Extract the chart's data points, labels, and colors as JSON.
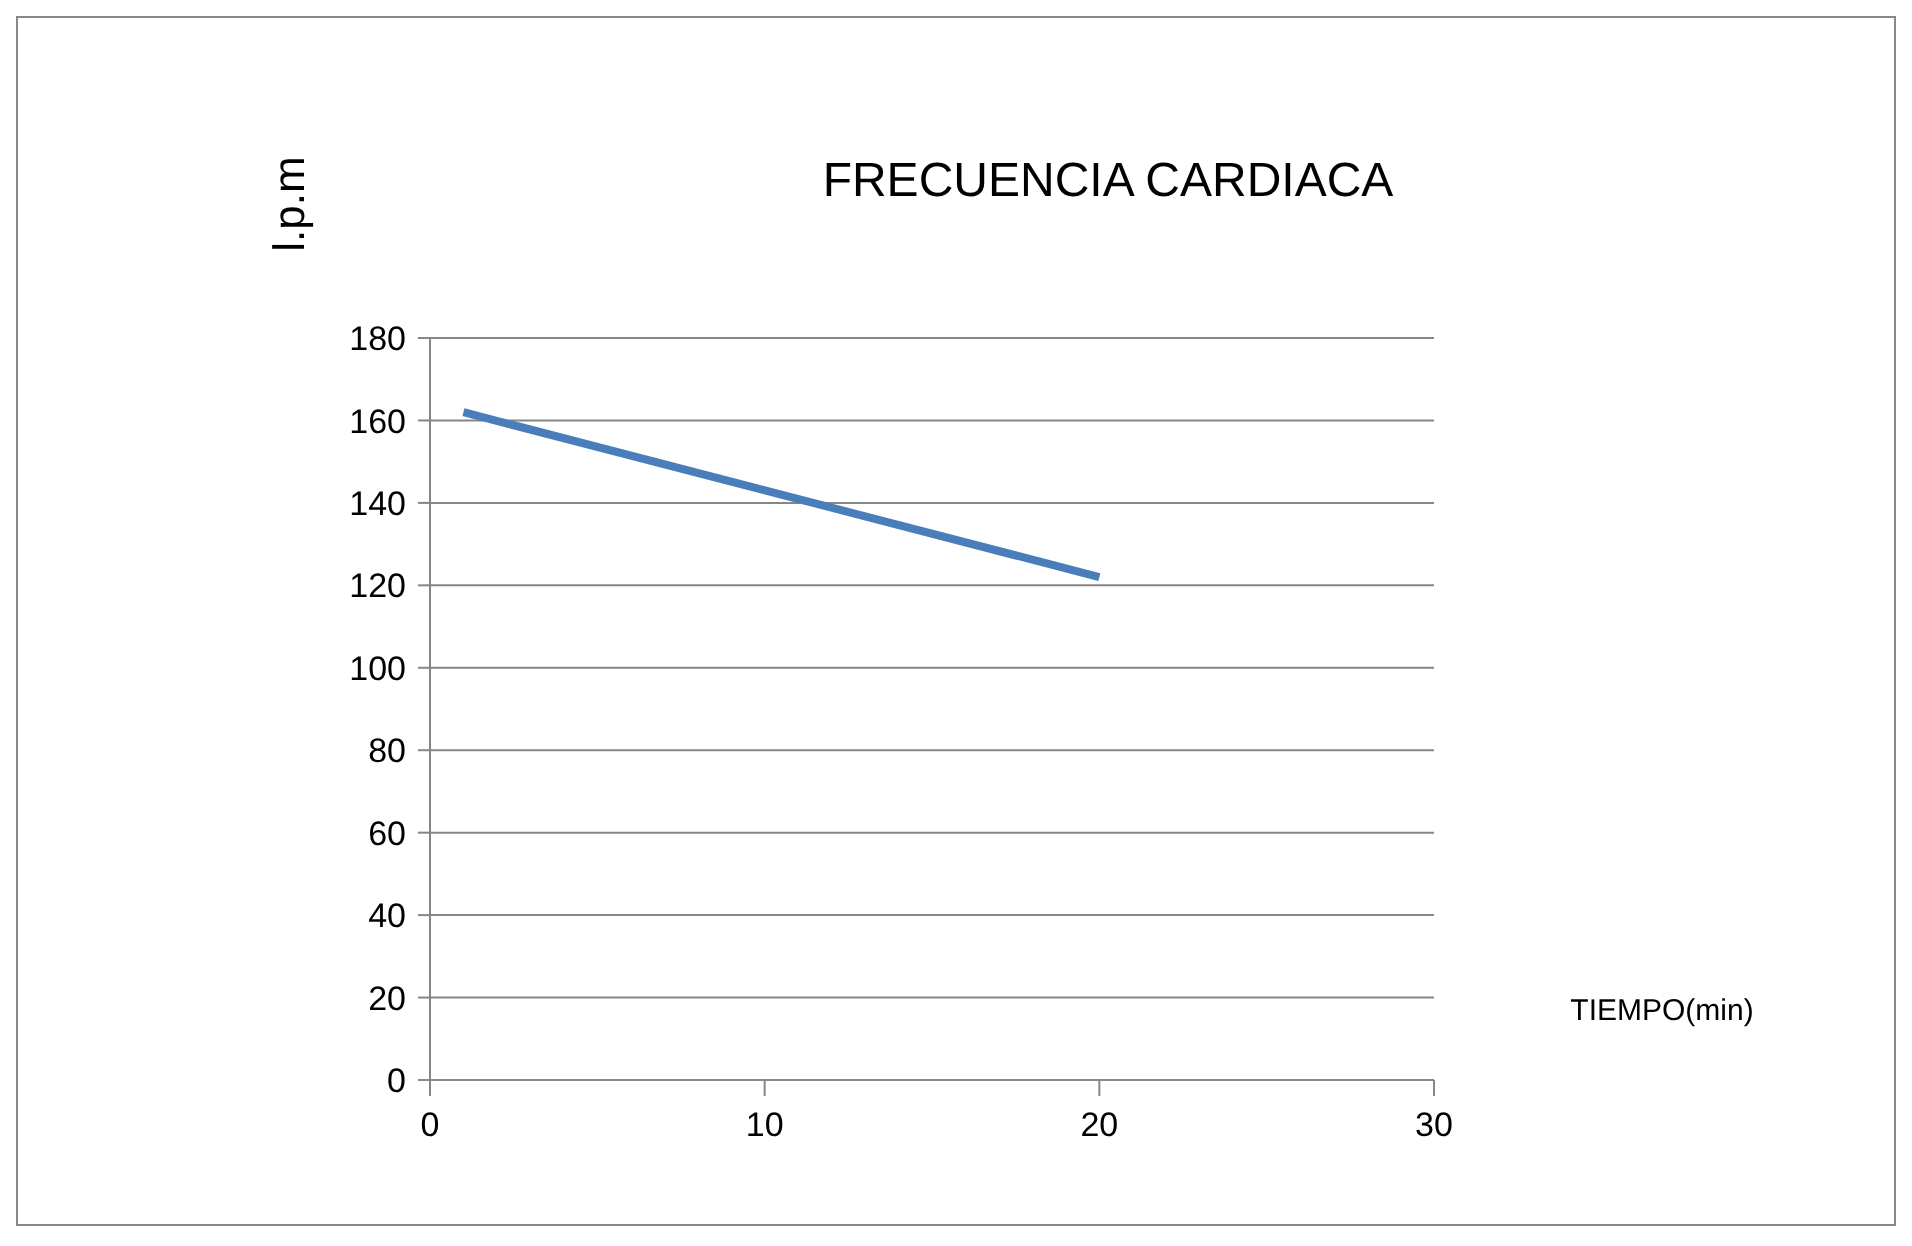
{
  "chart_data": {
    "type": "line",
    "title": "FRECUENCIA CARDIACA",
    "xlabel": "TIEMPO(min)",
    "ylabel": "l.p.m",
    "x": [
      1,
      20
    ],
    "series": [
      {
        "color": "#4a7ebb",
        "values": [
          162,
          122
        ]
      }
    ],
    "xlim": [
      0,
      30
    ],
    "xticks": [
      0,
      10,
      20,
      30
    ],
    "ylim": [
      0,
      180
    ],
    "yticks": [
      0,
      20,
      40,
      60,
      80,
      100,
      120,
      140,
      160,
      180
    ],
    "grid": "y",
    "marker": "none",
    "line_style": "solid",
    "legend": false
  }
}
